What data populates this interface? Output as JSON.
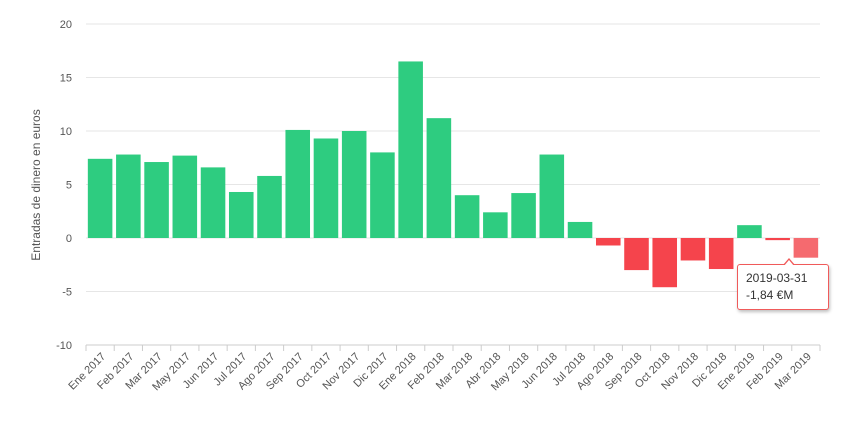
{
  "chart_data": {
    "type": "bar",
    "ylabel": "Entradas de dinero en euros",
    "xlabel": "",
    "title": "",
    "ylim": [
      -10,
      20
    ],
    "yticks": [
      20,
      15,
      10,
      5,
      0,
      -5,
      -10
    ],
    "grid": true,
    "categories": [
      "Ene 2017",
      "Feb 2017",
      "Mar 2017",
      "May 2017",
      "Jun 2017",
      "Jul 2017",
      "Ago 2017",
      "Sep 2017",
      "Oct 2017",
      "Nov 2017",
      "Dic 2017",
      "Ene 2018",
      "Feb 2018",
      "Mar 2018",
      "Abr 2018",
      "May 2018",
      "Jun 2018",
      "Jul 2018",
      "Ago 2018",
      "Sep 2018",
      "Oct 2018",
      "Nov 2018",
      "Dic 2018",
      "Ene 2019",
      "Feb 2019",
      "Mar 2019"
    ],
    "values": [
      7.4,
      7.8,
      7.1,
      7.7,
      6.6,
      4.3,
      5.8,
      10.1,
      9.3,
      10.0,
      8.0,
      16.5,
      11.2,
      4.0,
      2.4,
      4.2,
      7.8,
      1.5,
      -0.7,
      -3.0,
      -4.6,
      -2.1,
      -2.9,
      1.2,
      -0.2,
      -1.84
    ],
    "colors": {
      "positive": "#2ecc80",
      "negative": "#f5444c",
      "highlight": "#f56a6f"
    },
    "tooltip": {
      "date": "2019-03-31",
      "value": "-1,84 €M"
    }
  }
}
